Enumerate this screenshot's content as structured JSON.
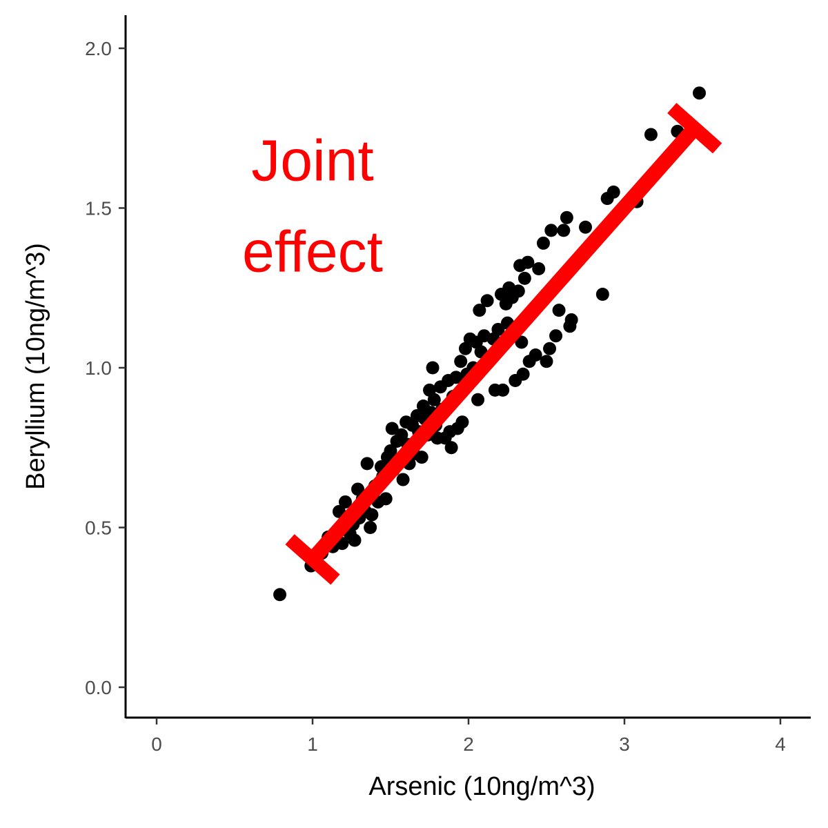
{
  "chart_data": {
    "type": "scatter",
    "xlabel": "Arsenic (10ng/m^3)",
    "ylabel": "Beryllium (10ng/m^3)",
    "xlim": [
      -0.2,
      4.2
    ],
    "ylim": [
      -0.1,
      2.1
    ],
    "x_ticks": [
      0,
      1,
      2,
      3,
      4
    ],
    "x_tick_labels": [
      "0",
      "1",
      "2",
      "3",
      "4"
    ],
    "y_ticks": [
      0.0,
      0.5,
      1.0,
      1.5,
      2.0
    ],
    "y_tick_labels": [
      "0.0",
      "0.5",
      "1.0",
      "1.5",
      "2.0"
    ],
    "grid": false,
    "point_color": "#000000",
    "annotation": {
      "lines": [
        "Joint",
        "effect"
      ],
      "color": "#ff0000",
      "x": 1.0,
      "y": 1.5
    },
    "effect_segment": {
      "color": "#ff0000",
      "x_start": 1.0,
      "y_start": 0.4,
      "x_end": 3.45,
      "y_end": 1.75
    },
    "points": [
      {
        "x": 0.79,
        "y": 0.29
      },
      {
        "x": 0.99,
        "y": 0.38
      },
      {
        "x": 1.06,
        "y": 0.42
      },
      {
        "x": 1.1,
        "y": 0.47
      },
      {
        "x": 1.13,
        "y": 0.44
      },
      {
        "x": 1.17,
        "y": 0.55
      },
      {
        "x": 1.19,
        "y": 0.45
      },
      {
        "x": 1.21,
        "y": 0.58
      },
      {
        "x": 1.24,
        "y": 0.48
      },
      {
        "x": 1.26,
        "y": 0.51
      },
      {
        "x": 1.27,
        "y": 0.46
      },
      {
        "x": 1.29,
        "y": 0.62
      },
      {
        "x": 1.3,
        "y": 0.53
      },
      {
        "x": 1.32,
        "y": 0.59
      },
      {
        "x": 1.34,
        "y": 0.55
      },
      {
        "x": 1.35,
        "y": 0.7
      },
      {
        "x": 1.37,
        "y": 0.5
      },
      {
        "x": 1.38,
        "y": 0.54
      },
      {
        "x": 1.4,
        "y": 0.63
      },
      {
        "x": 1.42,
        "y": 0.58
      },
      {
        "x": 1.44,
        "y": 0.69
      },
      {
        "x": 1.45,
        "y": 0.66
      },
      {
        "x": 1.47,
        "y": 0.59
      },
      {
        "x": 1.48,
        "y": 0.72
      },
      {
        "x": 1.5,
        "y": 0.74
      },
      {
        "x": 1.51,
        "y": 0.81
      },
      {
        "x": 1.52,
        "y": 0.68
      },
      {
        "x": 1.54,
        "y": 0.77
      },
      {
        "x": 1.55,
        "y": 0.71
      },
      {
        "x": 1.57,
        "y": 0.79
      },
      {
        "x": 1.58,
        "y": 0.65
      },
      {
        "x": 1.6,
        "y": 0.83
      },
      {
        "x": 1.61,
        "y": 0.76
      },
      {
        "x": 1.62,
        "y": 0.7
      },
      {
        "x": 1.64,
        "y": 0.82
      },
      {
        "x": 1.65,
        "y": 0.73
      },
      {
        "x": 1.67,
        "y": 0.85
      },
      {
        "x": 1.68,
        "y": 0.8
      },
      {
        "x": 1.7,
        "y": 0.72
      },
      {
        "x": 1.71,
        "y": 0.88
      },
      {
        "x": 1.72,
        "y": 0.84
      },
      {
        "x": 1.74,
        "y": 0.79
      },
      {
        "x": 1.75,
        "y": 0.93
      },
      {
        "x": 1.76,
        "y": 0.86
      },
      {
        "x": 1.77,
        "y": 1.0
      },
      {
        "x": 1.78,
        "y": 0.9
      },
      {
        "x": 1.79,
        "y": 0.82
      },
      {
        "x": 1.8,
        "y": 0.78
      },
      {
        "x": 1.82,
        "y": 0.94
      },
      {
        "x": 1.83,
        "y": 0.87
      },
      {
        "x": 1.85,
        "y": 0.78
      },
      {
        "x": 1.87,
        "y": 0.96
      },
      {
        "x": 1.88,
        "y": 0.8
      },
      {
        "x": 1.89,
        "y": 0.75
      },
      {
        "x": 1.9,
        "y": 0.91
      },
      {
        "x": 1.92,
        "y": 0.97
      },
      {
        "x": 1.93,
        "y": 0.81
      },
      {
        "x": 1.95,
        "y": 1.02
      },
      {
        "x": 1.96,
        "y": 0.83
      },
      {
        "x": 1.98,
        "y": 1.06
      },
      {
        "x": 1.99,
        "y": 0.98
      },
      {
        "x": 2.01,
        "y": 1.09
      },
      {
        "x": 2.03,
        "y": 1.0
      },
      {
        "x": 2.05,
        "y": 1.08
      },
      {
        "x": 2.06,
        "y": 0.9
      },
      {
        "x": 2.07,
        "y": 1.18
      },
      {
        "x": 2.08,
        "y": 1.05
      },
      {
        "x": 2.1,
        "y": 1.1
      },
      {
        "x": 2.12,
        "y": 1.21
      },
      {
        "x": 2.14,
        "y": 1.03
      },
      {
        "x": 2.16,
        "y": 1.09
      },
      {
        "x": 2.17,
        "y": 0.93
      },
      {
        "x": 2.19,
        "y": 1.12
      },
      {
        "x": 2.21,
        "y": 1.23
      },
      {
        "x": 2.22,
        "y": 0.93
      },
      {
        "x": 2.24,
        "y": 1.2
      },
      {
        "x": 2.25,
        "y": 1.14
      },
      {
        "x": 2.26,
        "y": 1.25
      },
      {
        "x": 2.28,
        "y": 1.22
      },
      {
        "x": 2.3,
        "y": 0.96
      },
      {
        "x": 2.32,
        "y": 1.24
      },
      {
        "x": 2.33,
        "y": 1.32
      },
      {
        "x": 2.34,
        "y": 1.08
      },
      {
        "x": 2.35,
        "y": 0.98
      },
      {
        "x": 2.36,
        "y": 1.28
      },
      {
        "x": 2.38,
        "y": 1.33
      },
      {
        "x": 2.39,
        "y": 1.02
      },
      {
        "x": 2.41,
        "y": 1.18
      },
      {
        "x": 2.43,
        "y": 1.04
      },
      {
        "x": 2.45,
        "y": 1.31
      },
      {
        "x": 2.48,
        "y": 1.39
      },
      {
        "x": 2.5,
        "y": 1.02
      },
      {
        "x": 2.52,
        "y": 1.06
      },
      {
        "x": 2.53,
        "y": 1.43
      },
      {
        "x": 2.55,
        "y": 1.25
      },
      {
        "x": 2.56,
        "y": 1.1
      },
      {
        "x": 2.58,
        "y": 1.18
      },
      {
        "x": 2.61,
        "y": 1.43
      },
      {
        "x": 2.63,
        "y": 1.47
      },
      {
        "x": 2.65,
        "y": 1.13
      },
      {
        "x": 2.66,
        "y": 1.15
      },
      {
        "x": 2.75,
        "y": 1.44
      },
      {
        "x": 2.86,
        "y": 1.23
      },
      {
        "x": 2.89,
        "y": 1.53
      },
      {
        "x": 2.93,
        "y": 1.55
      },
      {
        "x": 3.08,
        "y": 1.52
      },
      {
        "x": 3.17,
        "y": 1.73
      },
      {
        "x": 3.34,
        "y": 1.74
      },
      {
        "x": 3.48,
        "y": 1.86
      }
    ]
  }
}
